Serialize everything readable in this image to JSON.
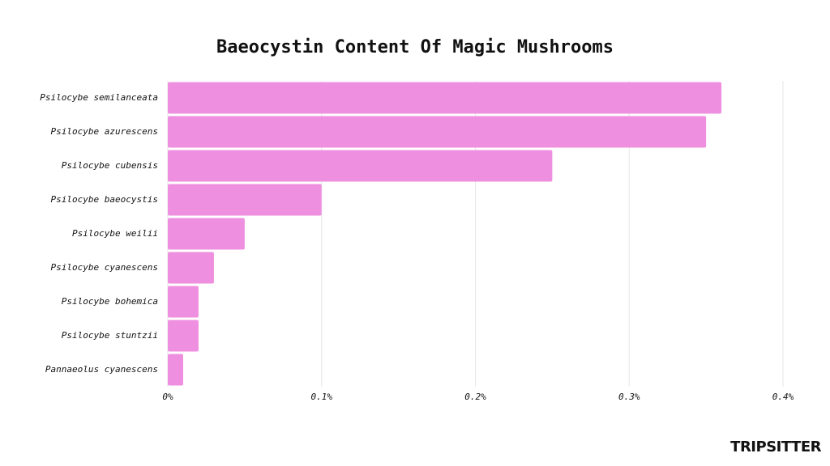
{
  "chart_data": {
    "type": "bar",
    "orientation": "horizontal",
    "title": "Baeocystin Content Of Magic Mushrooms",
    "categories": [
      "Psilocybe semilanceata",
      "Psilocybe azurescens",
      "Psilocybe cubensis",
      "Psilocybe baeocystis",
      "Psilocybe weilii",
      "Psilocybe cyanescens",
      "Psilocybe bohemica",
      "Psilocybe stuntzii",
      "Pannaeolus cyanescens"
    ],
    "values": [
      0.36,
      0.35,
      0.25,
      0.1,
      0.05,
      0.03,
      0.02,
      0.02,
      0.01
    ],
    "color": "#ef8fe0",
    "xlim": [
      0,
      0.4
    ],
    "xticks": [
      {
        "value": 0,
        "label": "0%"
      },
      {
        "value": 0.1,
        "label": "0.1%"
      },
      {
        "value": 0.2,
        "label": "0.2%"
      },
      {
        "value": 0.3,
        "label": "0.3%"
      },
      {
        "value": 0.4,
        "label": "0.4%"
      }
    ],
    "grid": true
  },
  "logo": "TRIPSITTER"
}
